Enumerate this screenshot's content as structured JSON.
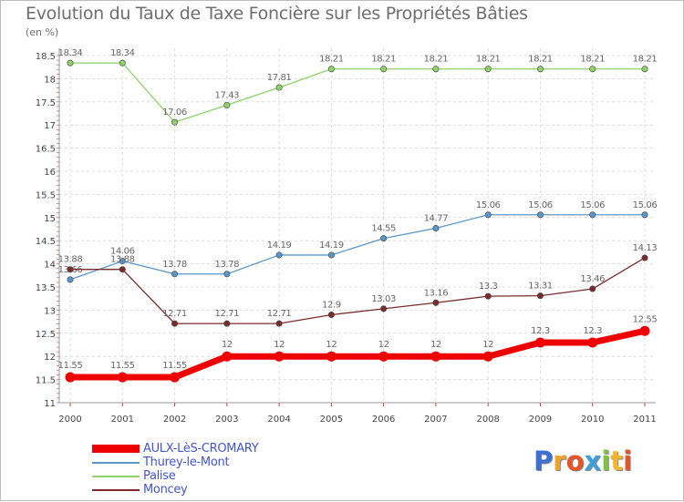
{
  "title": "Evolution du Taux de Taxe Foncière sur les Propriétés Bâties",
  "unit_label": "(en %)",
  "logo": {
    "letters": [
      "P",
      "r",
      "o",
      "x",
      "i",
      "t",
      "i"
    ],
    "colors": [
      "#3b6fd4",
      "#f2a12b",
      "#e6542a",
      "#3f9fd8",
      "#7cc243",
      "#f2b52e",
      "#e6542a"
    ]
  },
  "chart_data": {
    "type": "line",
    "title": "Evolution du Taux de Taxe Foncière sur les Propriétés Bâties",
    "ylabel": "(en %)",
    "xlabel": "",
    "ylim": [
      11,
      18.5
    ],
    "yticks": [
      11,
      11.5,
      12,
      12.5,
      13,
      13.5,
      14,
      14.5,
      15,
      15.5,
      16,
      16.5,
      17,
      17.5,
      18,
      18.5
    ],
    "categories": [
      "2000",
      "2001",
      "2002",
      "2003",
      "2004",
      "2005",
      "2006",
      "2007",
      "2008",
      "2009",
      "2010",
      "2011"
    ],
    "grid": true,
    "series": [
      {
        "name": "AULX-LèS-CROMARY",
        "color": "#ee0000",
        "values": [
          11.55,
          11.55,
          11.55,
          12,
          12,
          12,
          12,
          12,
          12,
          12.3,
          12.3,
          12.55
        ],
        "labels": [
          "11.55",
          "11.55",
          "11.55",
          "12",
          "12",
          "12",
          "12",
          "12",
          "12",
          "12.3",
          "12.3",
          "12.55"
        ]
      },
      {
        "name": "Thurey-le-Mont",
        "color": "#5a96c8",
        "values": [
          13.66,
          14.06,
          13.78,
          13.78,
          14.19,
          14.19,
          14.55,
          14.77,
          15.06,
          15.06,
          15.06,
          15.06
        ],
        "labels": [
          "13.66",
          "14.06",
          "13.78",
          "13.78",
          "14.19",
          "14.19",
          "14.55",
          "14.77",
          "15.06",
          "15.06",
          "15.06",
          "15.06"
        ]
      },
      {
        "name": "Palise",
        "color": "#8fd16a",
        "values": [
          18.34,
          18.34,
          17.06,
          17.43,
          17.81,
          18.21,
          18.21,
          18.21,
          18.21,
          18.21,
          18.21,
          18.21
        ],
        "labels": [
          "18.34",
          "18.34",
          "17.06",
          "17.43",
          "17.81",
          "18.21",
          "18.21",
          "18.21",
          "18.21",
          "18.21",
          "18.21",
          "18.21"
        ]
      },
      {
        "name": "Moncey",
        "color": "#7a2c2c",
        "values": [
          13.88,
          13.88,
          12.71,
          12.71,
          12.71,
          12.9,
          13.03,
          13.16,
          13.3,
          13.31,
          13.46,
          14.13
        ],
        "labels": [
          "13.88",
          "13.88",
          "12.71",
          "12.71",
          "12.71",
          "12.9",
          "13.03",
          "13.16",
          "13.3",
          "13.31",
          "13.46",
          "14.13"
        ]
      }
    ]
  }
}
